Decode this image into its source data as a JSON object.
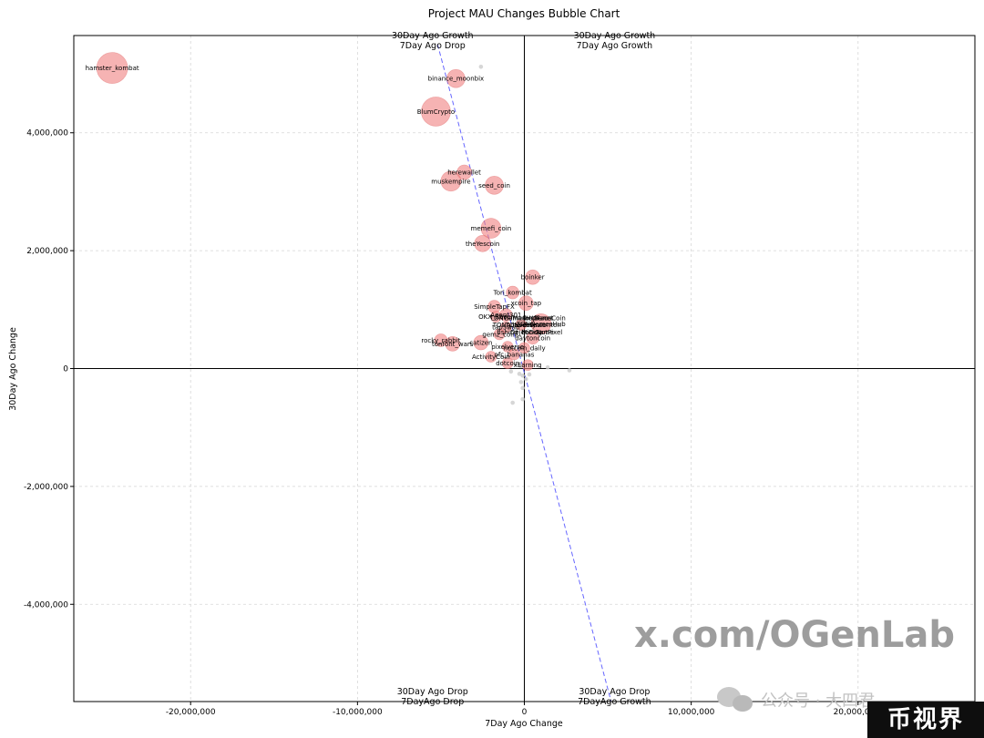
{
  "chart_data": {
    "type": "scatter",
    "title": "Project MAU Changes Bubble Chart",
    "xlabel": "7Day Ago Change",
    "ylabel": "30Day Ago Change",
    "xlim": [
      -27000000,
      27000000
    ],
    "ylim": [
      -5650000,
      5650000
    ],
    "xticks": [
      -20000000,
      -10000000,
      0,
      10000000,
      20000000
    ],
    "xtick_labels": [
      "-20,000,000",
      "-10,000,000",
      "0",
      "10,000,000",
      "20,000,000,"
    ],
    "yticks": [
      -4000000,
      -2000000,
      0,
      2000000,
      4000000
    ],
    "ytick_labels": [
      "-4,000,000",
      "-2,000,000",
      "0",
      "2,000,000",
      "4,000,000"
    ],
    "grid": true,
    "quadrant_labels": [
      {
        "position": "top-left",
        "line1": "30Day Ago Growth",
        "line2": "7Day Ago Drop"
      },
      {
        "position": "top-right",
        "line1": "30Day Ago Growth",
        "line2": "7Day Ago Growth"
      },
      {
        "position": "bottom-left",
        "line1": "30Day Ago Drop",
        "line2": "7DayAgo Drop"
      },
      {
        "position": "bottom-right",
        "line1": "30Day Ago Drop",
        "line2": "7DayAgo Growth"
      }
    ],
    "trend_line": {
      "x": [
        -5200000,
        5200000
      ],
      "y": [
        5500000,
        -5650000
      ]
    },
    "labeled_points": [
      {
        "name": "hamster_kombat",
        "x": -24700000,
        "y": 5100000,
        "r": 17
      },
      {
        "name": "binance_moonbix",
        "x": -4100000,
        "y": 4920000,
        "r": 10
      },
      {
        "name": "BlumCrypto",
        "x": -5300000,
        "y": 4360000,
        "r": 16
      },
      {
        "name": "herewallet",
        "x": -3600000,
        "y": 3330000,
        "r": 8
      },
      {
        "name": "muskempire",
        "x": -4400000,
        "y": 3180000,
        "r": 11
      },
      {
        "name": "seed_coin",
        "x": -1800000,
        "y": 3110000,
        "r": 10
      },
      {
        "name": "memefi_coin",
        "x": -2000000,
        "y": 2380000,
        "r": 11
      },
      {
        "name": "theYescoin",
        "x": -2500000,
        "y": 2120000,
        "r": 9
      },
      {
        "name": "boinker",
        "x": 500000,
        "y": 1550000,
        "r": 8
      },
      {
        "name": "Tori_kombat",
        "x": -700000,
        "y": 1290000,
        "r": 7
      },
      {
        "name": "xcoin_tap",
        "x": 100000,
        "y": 1110000,
        "r": 8
      },
      {
        "name": "SimpleTapFX",
        "x": -1800000,
        "y": 1050000,
        "r": 7
      },
      {
        "name": "Agent301",
        "x": -1100000,
        "y": 910000,
        "r": 7
      },
      {
        "name": "OKX_Racer",
        "x": -1700000,
        "y": 880000,
        "r": 6
      },
      {
        "name": "TONGamesHub",
        "x": 1000000,
        "y": 760000,
        "r": 11
      },
      {
        "name": "TONverse",
        "x": -200000,
        "y": 740000,
        "r": 6
      },
      {
        "name": "tapSwap",
        "x": -1100000,
        "y": 700000,
        "r": 6
      },
      {
        "name": "gemz_coin",
        "x": -1500000,
        "y": 580000,
        "r": 6
      },
      {
        "name": "daytoncoin",
        "x": 500000,
        "y": 520000,
        "r": 7
      },
      {
        "name": "rocky_rabbit",
        "x": -5000000,
        "y": 480000,
        "r": 7
      },
      {
        "name": "tonfont_wars",
        "x": -4300000,
        "y": 420000,
        "r": 8
      },
      {
        "name": "catizen",
        "x": -2600000,
        "y": 440000,
        "r": 8
      },
      {
        "name": "pixelverse",
        "x": -1000000,
        "y": 370000,
        "r": 6
      },
      {
        "name": "notcoin_daily",
        "x": 0,
        "y": 350000,
        "r": 6
      },
      {
        "name": "ActivityCoin",
        "x": -2000000,
        "y": 200000,
        "r": 6
      },
      {
        "name": "ofc_bananas",
        "x": -600000,
        "y": 240000,
        "r": 6
      },
      {
        "name": "dotcoin",
        "x": -1000000,
        "y": 90000,
        "r": 6
      },
      {
        "name": "xEarning",
        "x": 200000,
        "y": 60000,
        "r": 6
      }
    ],
    "cluster_labels": [
      "TONGamesHub",
      "TheMarketPlace",
      "tonplanet",
      "GemsCoin",
      "TONAcademy",
      "holdcoin",
      "Pluto",
      "wonton",
      "fishing_bot",
      "DejenDog",
      "MiniGame",
      "NotPixel"
    ],
    "small_points": [
      {
        "x": -2600000,
        "y": 5120000
      },
      {
        "x": -200000,
        "y": 40000
      },
      {
        "x": -100000,
        "y": -120000
      },
      {
        "x": -200000,
        "y": -230000
      },
      {
        "x": -100000,
        "y": -330000
      },
      {
        "x": 100000,
        "y": -180000
      },
      {
        "x": -300000,
        "y": -90000
      },
      {
        "x": 300000,
        "y": -100000
      },
      {
        "x": -700000,
        "y": -580000
      },
      {
        "x": -100000,
        "y": -520000
      },
      {
        "x": 1400000,
        "y": 20000
      },
      {
        "x": 2700000,
        "y": -30000
      },
      {
        "x": -800000,
        "y": -50000
      }
    ]
  },
  "watermark": {
    "text": "x.com/OGenLab",
    "wechat_text": "公众号 · 大四君",
    "badge": "币视界"
  },
  "colors": {
    "bubble_fill": "#f08080",
    "bubble_stroke": "#e06666",
    "small_point": "#cccccc",
    "trend_line": "#6666ff",
    "grid": "#d6d6d6"
  }
}
